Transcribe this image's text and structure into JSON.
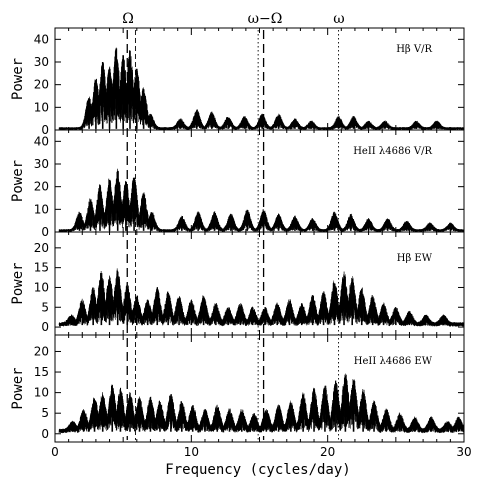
{
  "chart_data": {
    "type": "line",
    "xlabel": "Frequency (cycles/day)",
    "ylabel": "Power",
    "xlim": [
      0,
      30
    ],
    "x_ticks": [
      0,
      10,
      20,
      30
    ],
    "markers": [
      {
        "label": "Ω",
        "x": 5.3,
        "style": "long-dash"
      },
      {
        "label": "",
        "x": 5.9,
        "style": "dash"
      },
      {
        "label": "ω−Ω",
        "x": 15.3,
        "style": "long-dash"
      },
      {
        "label": "",
        "x": 14.9,
        "style": "dot"
      },
      {
        "label": "ω",
        "x": 20.8,
        "style": "dot"
      }
    ],
    "marker_labels": {
      "omega_big": "Ω",
      "omega_minus": "ω−Ω",
      "omega_small": "ω"
    },
    "panels": [
      {
        "label": "Hβ V/R",
        "ylim": [
          0,
          45
        ],
        "y_ticks": [
          0,
          10,
          20,
          30,
          40
        ],
        "peaks": [
          {
            "x": 2.5,
            "y": 14
          },
          {
            "x": 3.0,
            "y": 22
          },
          {
            "x": 3.5,
            "y": 30
          },
          {
            "x": 4.0,
            "y": 27
          },
          {
            "x": 4.5,
            "y": 36
          },
          {
            "x": 5.0,
            "y": 33
          },
          {
            "x": 5.5,
            "y": 35
          },
          {
            "x": 6.0,
            "y": 27
          },
          {
            "x": 6.5,
            "y": 18
          },
          {
            "x": 7.0,
            "y": 6
          },
          {
            "x": 9.2,
            "y": 4
          },
          {
            "x": 10.4,
            "y": 8
          },
          {
            "x": 11.5,
            "y": 7
          },
          {
            "x": 12.7,
            "y": 5
          },
          {
            "x": 13.9,
            "y": 5
          },
          {
            "x": 15.2,
            "y": 6
          },
          {
            "x": 16.4,
            "y": 6
          },
          {
            "x": 17.6,
            "y": 4
          },
          {
            "x": 18.8,
            "y": 3
          },
          {
            "x": 20.8,
            "y": 5
          },
          {
            "x": 21.9,
            "y": 5
          },
          {
            "x": 23.0,
            "y": 3
          },
          {
            "x": 24.2,
            "y": 3
          },
          {
            "x": 26.5,
            "y": 3
          },
          {
            "x": 28.0,
            "y": 3
          }
        ]
      },
      {
        "label": "HeII λ4686 V/R",
        "ylim": [
          0,
          45
        ],
        "y_ticks": [
          0,
          10,
          20,
          30,
          40
        ],
        "peaks": [
          {
            "x": 1.8,
            "y": 8
          },
          {
            "x": 2.6,
            "y": 14
          },
          {
            "x": 3.3,
            "y": 20
          },
          {
            "x": 4.0,
            "y": 23
          },
          {
            "x": 4.6,
            "y": 27
          },
          {
            "x": 5.2,
            "y": 22
          },
          {
            "x": 5.8,
            "y": 24
          },
          {
            "x": 6.5,
            "y": 17
          },
          {
            "x": 7.1,
            "y": 8
          },
          {
            "x": 9.3,
            "y": 6
          },
          {
            "x": 10.5,
            "y": 8
          },
          {
            "x": 11.7,
            "y": 8
          },
          {
            "x": 12.9,
            "y": 7
          },
          {
            "x": 14.1,
            "y": 9
          },
          {
            "x": 15.3,
            "y": 9
          },
          {
            "x": 16.4,
            "y": 7
          },
          {
            "x": 17.6,
            "y": 6
          },
          {
            "x": 18.9,
            "y": 5
          },
          {
            "x": 20.5,
            "y": 8
          },
          {
            "x": 21.7,
            "y": 7
          },
          {
            "x": 23.0,
            "y": 5
          },
          {
            "x": 24.4,
            "y": 5
          },
          {
            "x": 25.8,
            "y": 4
          },
          {
            "x": 27.5,
            "y": 3
          },
          {
            "x": 29.0,
            "y": 3
          }
        ]
      },
      {
        "label": "Hβ EW",
        "ylim": [
          -2,
          24
        ],
        "y_ticks": [
          0,
          5,
          10,
          15,
          20
        ],
        "peaks": [
          {
            "x": 1.2,
            "y": 2
          },
          {
            "x": 2.0,
            "y": 6
          },
          {
            "x": 2.8,
            "y": 9
          },
          {
            "x": 3.4,
            "y": 13
          },
          {
            "x": 4.0,
            "y": 12
          },
          {
            "x": 4.6,
            "y": 14
          },
          {
            "x": 5.3,
            "y": 10
          },
          {
            "x": 6.0,
            "y": 7
          },
          {
            "x": 6.8,
            "y": 6
          },
          {
            "x": 7.5,
            "y": 9
          },
          {
            "x": 8.3,
            "y": 8
          },
          {
            "x": 9.1,
            "y": 7
          },
          {
            "x": 10.0,
            "y": 6
          },
          {
            "x": 10.9,
            "y": 7
          },
          {
            "x": 11.8,
            "y": 5
          },
          {
            "x": 12.7,
            "y": 4
          },
          {
            "x": 13.6,
            "y": 5
          },
          {
            "x": 14.5,
            "y": 4
          },
          {
            "x": 15.4,
            "y": 4
          },
          {
            "x": 16.3,
            "y": 5
          },
          {
            "x": 17.2,
            "y": 6
          },
          {
            "x": 18.1,
            "y": 5
          },
          {
            "x": 18.9,
            "y": 7
          },
          {
            "x": 19.7,
            "y": 8
          },
          {
            "x": 20.5,
            "y": 11
          },
          {
            "x": 21.2,
            "y": 13
          },
          {
            "x": 21.8,
            "y": 12
          },
          {
            "x": 22.5,
            "y": 9
          },
          {
            "x": 23.3,
            "y": 7
          },
          {
            "x": 24.1,
            "y": 5
          },
          {
            "x": 25.0,
            "y": 4
          },
          {
            "x": 26.0,
            "y": 3
          },
          {
            "x": 27.2,
            "y": 2
          },
          {
            "x": 28.5,
            "y": 2
          }
        ]
      },
      {
        "label": "HeII λ4686 EW",
        "ylim": [
          -2,
          24
        ],
        "y_ticks": [
          0,
          5,
          10,
          15,
          20
        ],
        "peaks": [
          {
            "x": 1.3,
            "y": 2
          },
          {
            "x": 2.1,
            "y": 5
          },
          {
            "x": 2.9,
            "y": 8
          },
          {
            "x": 3.5,
            "y": 9
          },
          {
            "x": 4.2,
            "y": 11
          },
          {
            "x": 4.8,
            "y": 10
          },
          {
            "x": 5.5,
            "y": 9
          },
          {
            "x": 6.2,
            "y": 8
          },
          {
            "x": 7.0,
            "y": 8
          },
          {
            "x": 7.7,
            "y": 7
          },
          {
            "x": 8.5,
            "y": 9
          },
          {
            "x": 9.3,
            "y": 7
          },
          {
            "x": 10.1,
            "y": 6
          },
          {
            "x": 11.0,
            "y": 5
          },
          {
            "x": 11.9,
            "y": 6
          },
          {
            "x": 12.8,
            "y": 5
          },
          {
            "x": 13.7,
            "y": 5
          },
          {
            "x": 14.6,
            "y": 4
          },
          {
            "x": 15.5,
            "y": 5
          },
          {
            "x": 16.4,
            "y": 6
          },
          {
            "x": 17.3,
            "y": 7
          },
          {
            "x": 18.2,
            "y": 9
          },
          {
            "x": 19.0,
            "y": 10
          },
          {
            "x": 19.8,
            "y": 11
          },
          {
            "x": 20.6,
            "y": 12
          },
          {
            "x": 21.3,
            "y": 14
          },
          {
            "x": 21.9,
            "y": 13
          },
          {
            "x": 22.6,
            "y": 10
          },
          {
            "x": 23.4,
            "y": 7
          },
          {
            "x": 24.3,
            "y": 5
          },
          {
            "x": 25.3,
            "y": 4
          },
          {
            "x": 26.4,
            "y": 3
          },
          {
            "x": 27.6,
            "y": 3
          },
          {
            "x": 28.8,
            "y": 2
          },
          {
            "x": 29.6,
            "y": 3
          }
        ]
      }
    ]
  }
}
